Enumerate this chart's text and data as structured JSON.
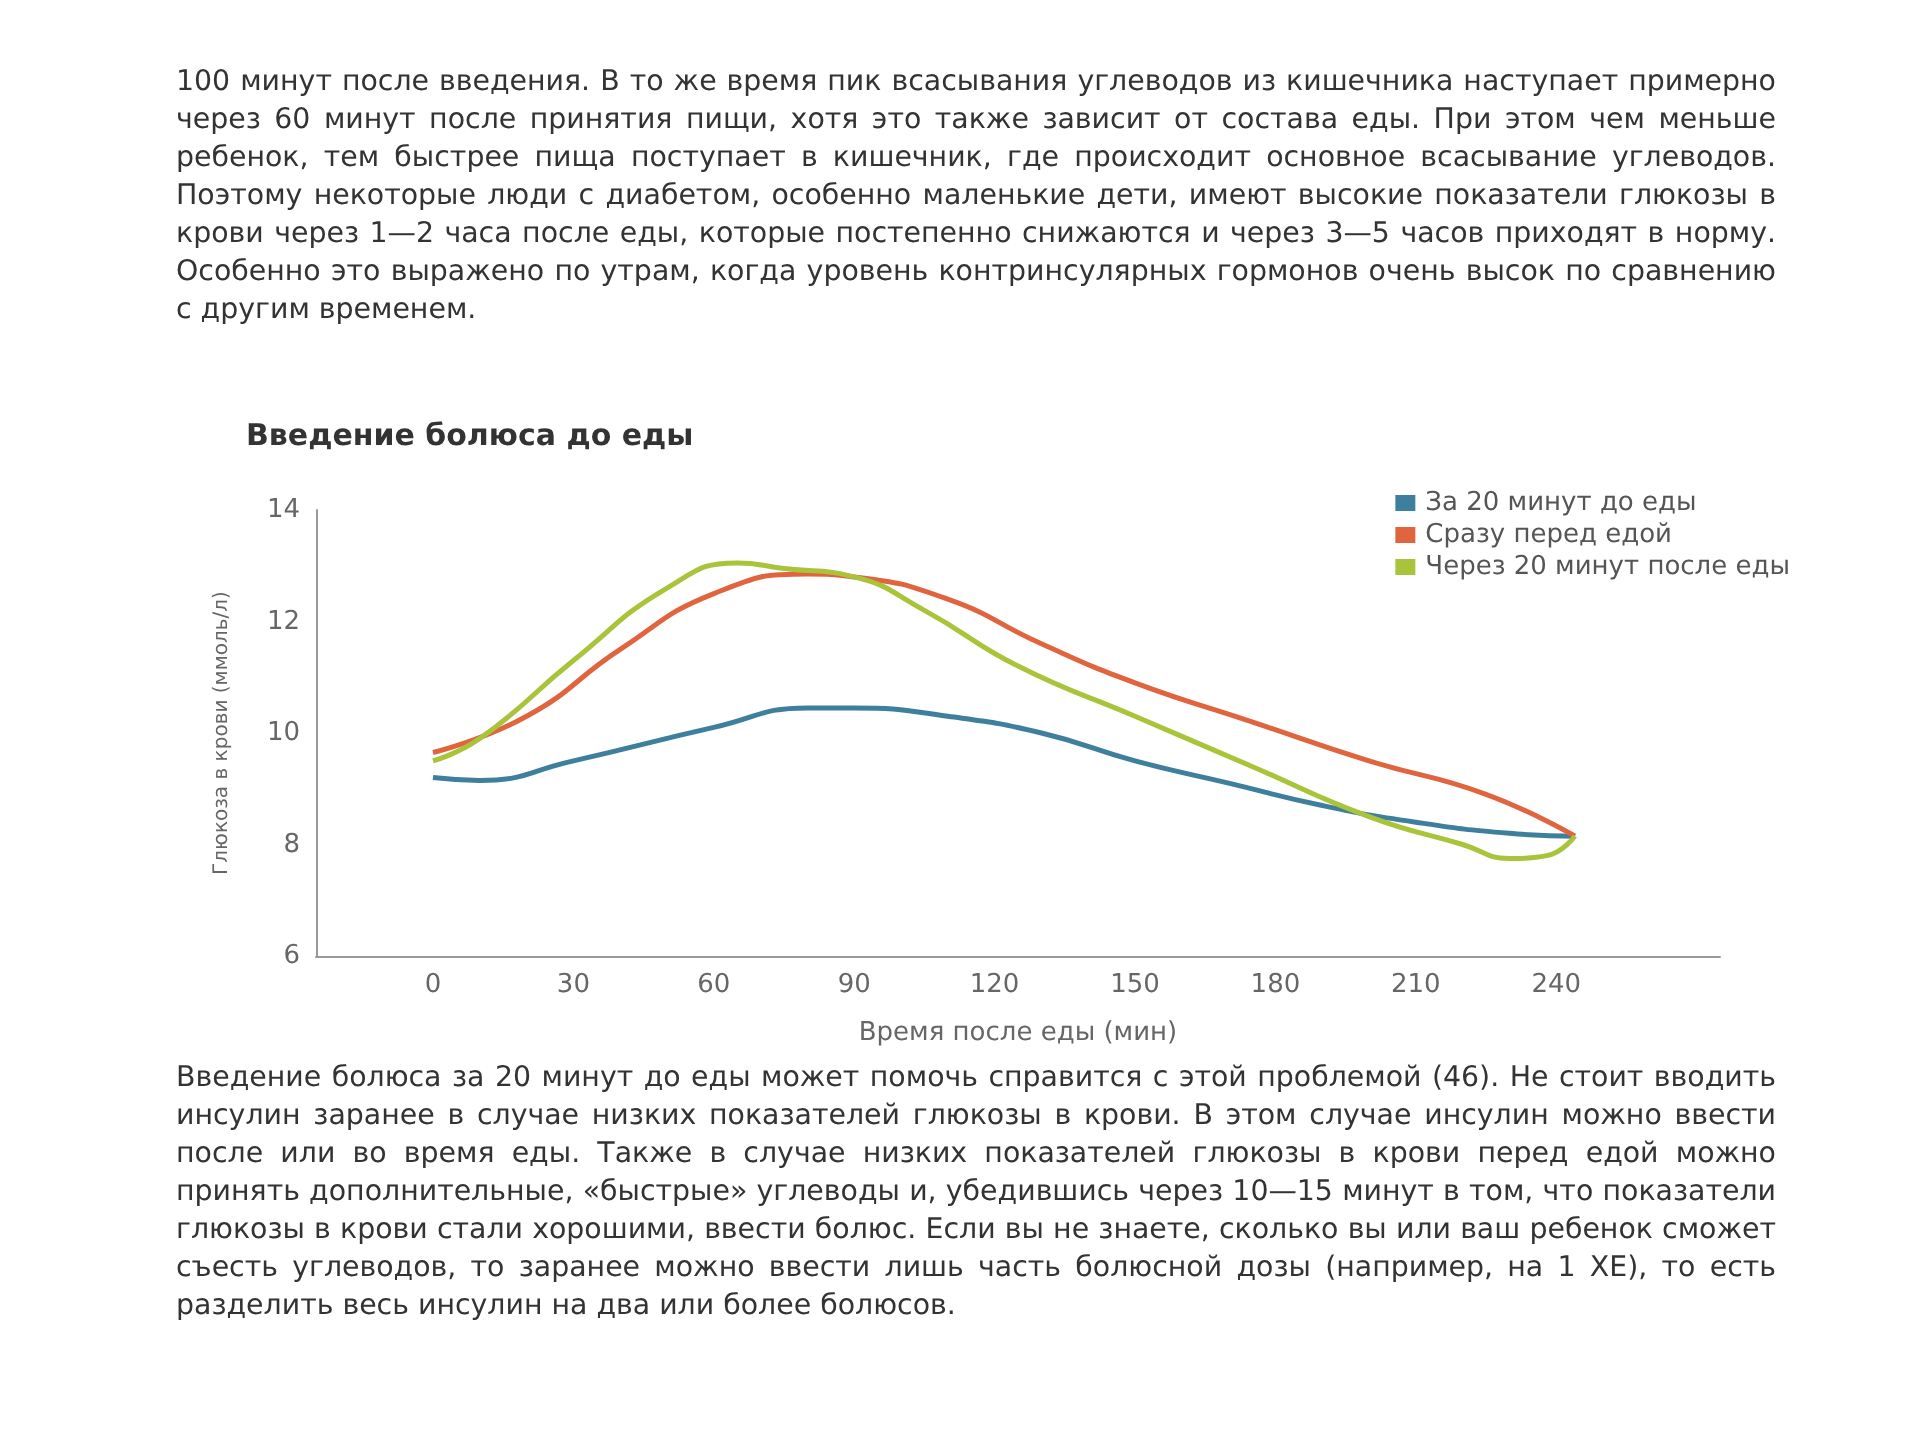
{
  "chart_data": {
    "type": "line",
    "title": "Введение болюса до еды",
    "xlabel": "Время после еды (мин)",
    "ylabel": "Глюкоза в крови (ммоль/л)",
    "annotations": [
      "100 минут после введения. В то же время пик всасывания углеводов из кишечника наступает примерно через 60 минут после принятия пищи, хотя это также зависит от состава еды. При этом чем меньше ребенок, тем быстрее пища поступает в кишечник, где происходит основное всасывание углеводов. Поэтому некоторые люди с диабетом, особенно маленькие дети, имеют высокие показатели глюкозы в крови через 1—2 часа после еды, которые постепенно снижаются и через 3—5 часов приходят в норму. Особенно это выражено по утрам, когда уровень контринсулярных гормонов очень высок по сравнению с другим временем.",
      "Введение болюса за 20 минут до еды может помочь справится с этой проблемой (46). Не стоит вводить инсулин заранее в случае низких показателей глюкозы в крови. В этом случае инсулин можно ввести после или во время еды. Также в случае низких показателей глюкозы в крови перед едой можно принять дополнительные, «быстрые» углеводы и, убедившись через 10—15 минут в том, что показатели глюкозы в крови стали хорошими, ввести болюс. Если вы не знаете, сколько вы или ваш ребенок сможет съесть углеводов, то заранее можно ввести лишь часть болюсной дозы (например, на 1 ХЕ), то есть разделить весь инсулин на два или более болюсов."
    ],
    "series": [
      {
        "name": "За 20 минут до еды",
        "color": "#3f7f9e",
        "x": [
          0,
          10,
          30,
          60,
          80,
          90,
          110,
          130,
          150,
          170,
          190,
          210,
          230,
          244
        ],
        "values": [
          9.2,
          9.15,
          9.5,
          10.1,
          10.45,
          10.45,
          10.3,
          10.0,
          9.5,
          9.1,
          8.7,
          8.4,
          8.2,
          8.15
        ]
      },
      {
        "name": "Сразу перед едой",
        "color": "#e0653f",
        "x": [
          0,
          20,
          40,
          60,
          80,
          90,
          110,
          130,
          150,
          175,
          200,
          225,
          244
        ],
        "values": [
          9.65,
          10.3,
          11.5,
          12.5,
          12.85,
          12.8,
          12.4,
          11.6,
          10.9,
          10.2,
          9.5,
          8.9,
          8.15
        ]
      },
      {
        "name": "Через 20 минут после еды",
        "color": "#a9c43a",
        "x": [
          0,
          10,
          30,
          50,
          65,
          75,
          90,
          105,
          125,
          150,
          175,
          200,
          220,
          230,
          238,
          244
        ],
        "values": [
          9.5,
          9.9,
          11.3,
          12.6,
          13.05,
          12.95,
          12.8,
          12.2,
          11.2,
          10.3,
          9.4,
          8.5,
          8.0,
          7.75,
          7.8,
          8.15
        ]
      }
    ],
    "xlim": [
      -25,
      275
    ],
    "xticks": [
      0,
      30,
      60,
      90,
      120,
      150,
      180,
      210,
      240
    ],
    "ylim": [
      6,
      14
    ],
    "yticks": [
      6,
      8,
      10,
      12,
      14
    ],
    "grid": false,
    "legend": "top right",
    "marker": "none",
    "line_style": "solid"
  }
}
